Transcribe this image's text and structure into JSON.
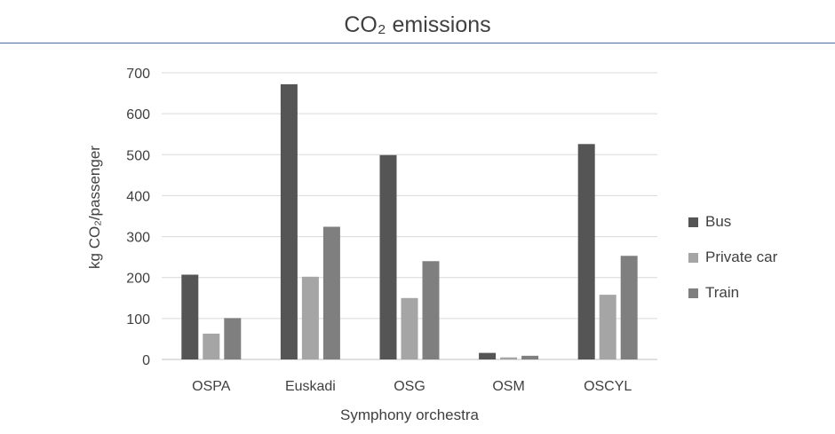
{
  "chart_data": {
    "type": "bar",
    "title": "CO₂ emissions",
    "xlabel": "Symphony orchestra",
    "ylabel": "kg CO₂/passenger",
    "ylim": [
      0,
      700
    ],
    "yticks": [
      0,
      100,
      200,
      300,
      400,
      500,
      600,
      700
    ],
    "grid": true,
    "legend_position": "right",
    "categories": [
      "OSPA",
      "Euskadi",
      "OSG",
      "OSM",
      "OSCYL"
    ],
    "series": [
      {
        "name": "Bus",
        "color": "#555555",
        "values": [
          207,
          672,
          499,
          16,
          526
        ]
      },
      {
        "name": "Private car",
        "color": "#a5a5a5",
        "values": [
          63,
          202,
          150,
          5,
          158
        ]
      },
      {
        "name": "Train",
        "color": "#7f7f7f",
        "values": [
          101,
          324,
          240,
          9,
          253
        ]
      }
    ]
  }
}
